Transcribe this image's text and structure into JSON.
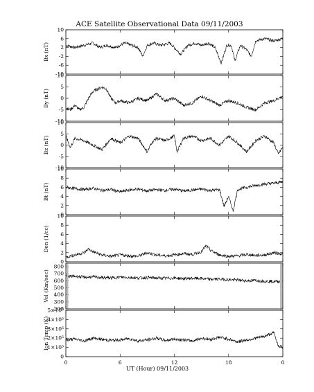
{
  "chart_data": {
    "type": "line",
    "title": "ACE Satellite Observational Data   09/11/2003",
    "xlabel": "UT (Hour)  09/11/2003",
    "x_ticks": [
      "0",
      "6",
      "12",
      "18",
      "0"
    ],
    "x_range_hours": [
      0,
      24
    ],
    "grid": false,
    "panels": [
      {
        "name": "Bx",
        "ylabel": "Bx (nT)",
        "ylim": [
          -10,
          10
        ],
        "y_ticks": [
          "-10",
          "-6",
          "-2",
          "2",
          "6",
          "10"
        ],
        "y_tick_values": [
          -10,
          -6,
          -2,
          2,
          6,
          10
        ],
        "x": [
          0,
          1,
          2,
          3,
          3.8,
          4.5,
          5.5,
          6.5,
          7.3,
          8,
          8.5,
          9,
          9.7,
          10.5,
          11.5,
          12,
          12.7,
          13.5,
          14.3,
          15,
          15.8,
          16.5,
          17.2,
          17.8,
          18.3,
          18.7,
          19.3,
          20,
          20.5,
          21,
          22,
          23,
          24
        ],
        "values": [
          3,
          2,
          3,
          4,
          2,
          3,
          2,
          4,
          3,
          2,
          -2,
          3,
          4,
          3,
          4,
          2,
          -1,
          3,
          4,
          3,
          4,
          2,
          -5,
          3,
          3,
          -4,
          3,
          1,
          -2,
          5,
          6,
          5,
          6
        ]
      },
      {
        "name": "By",
        "ylabel": "By (nT)",
        "ylim": [
          -10,
          10
        ],
        "y_ticks": [
          "-10",
          "-5",
          "0",
          "5",
          "10"
        ],
        "y_tick_values": [
          -10,
          -5,
          0,
          5,
          10
        ],
        "x": [
          0,
          0.5,
          1,
          1.5,
          2,
          2.5,
          3,
          3.5,
          4,
          4.5,
          5,
          5.5,
          6,
          7,
          8,
          9,
          10,
          11,
          12,
          13,
          14,
          15,
          16,
          17,
          18,
          19,
          20,
          21,
          22,
          23,
          24
        ],
        "values": [
          -4,
          -5,
          -3,
          -5,
          -4,
          0,
          3,
          4,
          5,
          4,
          0,
          -2,
          -1,
          -2,
          0,
          -1,
          2,
          -1,
          0,
          -3,
          -2,
          1,
          -1,
          -3,
          -1,
          -2,
          -4,
          -5,
          -2,
          -1,
          1
        ]
      },
      {
        "name": "Bz",
        "ylabel": "Bz (nT)",
        "ylim": [
          -10,
          10
        ],
        "y_ticks": [
          "-10",
          "-5",
          "0",
          "5",
          "10"
        ],
        "y_tick_values": [
          -10,
          -5,
          0,
          5,
          10
        ],
        "x": [
          0,
          0.5,
          1,
          2,
          3,
          4,
          5,
          6,
          7,
          8,
          9,
          9.5,
          10,
          11,
          12,
          12.3,
          13,
          14,
          15,
          16,
          17,
          18,
          19,
          20,
          21,
          22,
          23,
          23.5,
          24
        ],
        "values": [
          4,
          -1,
          3,
          2,
          0,
          -2,
          3,
          1,
          4,
          3,
          -3,
          1,
          3,
          2,
          4,
          -3,
          3,
          4,
          2,
          3,
          0,
          4,
          1,
          -3,
          2,
          4,
          1,
          -4,
          -1
        ]
      },
      {
        "name": "Bt",
        "ylabel": "Bt (nT)",
        "ylim": [
          0,
          10
        ],
        "y_ticks": [
          "0",
          "2",
          "4",
          "6",
          "8",
          "10"
        ],
        "y_tick_values": [
          0,
          2,
          4,
          6,
          8,
          10
        ],
        "x": [
          0,
          1,
          2,
          3,
          4,
          5,
          6,
          7,
          8,
          9,
          10,
          11,
          12,
          13,
          14,
          15,
          16,
          17,
          17.5,
          18,
          18.5,
          19,
          20,
          21,
          22,
          23,
          24
        ],
        "values": [
          6,
          5.7,
          5.5,
          5.8,
          5.3,
          5.5,
          5.0,
          5.4,
          5.6,
          5.2,
          5.5,
          5.3,
          5.6,
          5.2,
          5.4,
          5.6,
          5.3,
          5.5,
          1.8,
          4.0,
          0.8,
          5.5,
          6.0,
          6.4,
          6.7,
          6.9,
          7.2
        ]
      },
      {
        "name": "Den",
        "ylabel": "Den (1/cc)",
        "ylim": [
          0,
          10
        ],
        "y_ticks": [
          "0",
          "2",
          "4",
          "6",
          "8",
          "10"
        ],
        "y_tick_values": [
          0,
          2,
          4,
          6,
          8,
          10
        ],
        "x": [
          0,
          1,
          2,
          2.5,
          3,
          4,
          5,
          6,
          7,
          8,
          9,
          10,
          11,
          12,
          13,
          14,
          15,
          15.5,
          16,
          17,
          18,
          19,
          20,
          21,
          22,
          23,
          24
        ],
        "values": [
          1.0,
          1.5,
          2.0,
          2.8,
          2.2,
          1.5,
          1.2,
          1.5,
          1.3,
          1.2,
          2.0,
          1.5,
          1.3,
          1.5,
          1.8,
          1.6,
          2.2,
          3.5,
          2.5,
          1.5,
          1.2,
          1.3,
          1.6,
          1.4,
          1.5,
          2.0,
          1.7
        ]
      },
      {
        "name": "Vel",
        "ylabel": "Vel (Km/sec)",
        "ylim": [
          200,
          850
        ],
        "y_ticks": [
          "200",
          "300",
          "400",
          "500",
          "600",
          "700",
          "800"
        ],
        "y_tick_values": [
          200,
          300,
          400,
          500,
          600,
          700,
          800
        ],
        "x": [
          0,
          1,
          2,
          3,
          4,
          5,
          6,
          7,
          8,
          9,
          10,
          11,
          12,
          13,
          14,
          15,
          16,
          17,
          18,
          19,
          20,
          21,
          22,
          23,
          24
        ],
        "values": [
          660,
          665,
          650,
          655,
          645,
          640,
          650,
          648,
          640,
          645,
          640,
          635,
          640,
          630,
          635,
          632,
          620,
          625,
          615,
          610,
          600,
          605,
          595,
          590,
          590
        ]
      },
      {
        "name": "Ion Temp",
        "ylabel": "Ion Temp (K)",
        "ylim": [
          0,
          500000
        ],
        "y_ticks": [
          "0",
          "1×10⁵",
          "2×10⁵",
          "3×10⁵",
          "4×10⁵",
          "5×10⁵"
        ],
        "y_tick_values": [
          0,
          100000,
          200000,
          300000,
          400000,
          500000
        ],
        "x": [
          0,
          1,
          2,
          3,
          4,
          5,
          6,
          7,
          8,
          9,
          10,
          11,
          12,
          13,
          14,
          15,
          16,
          17,
          18,
          19,
          20,
          21,
          22,
          23,
          23.5,
          24
        ],
        "values": [
          180000,
          190000,
          170000,
          200000,
          185000,
          175000,
          180000,
          195000,
          170000,
          180000,
          200000,
          175000,
          190000,
          180000,
          170000,
          200000,
          185000,
          210000,
          190000,
          160000,
          180000,
          200000,
          220000,
          260000,
          120000,
          100000
        ]
      }
    ]
  }
}
